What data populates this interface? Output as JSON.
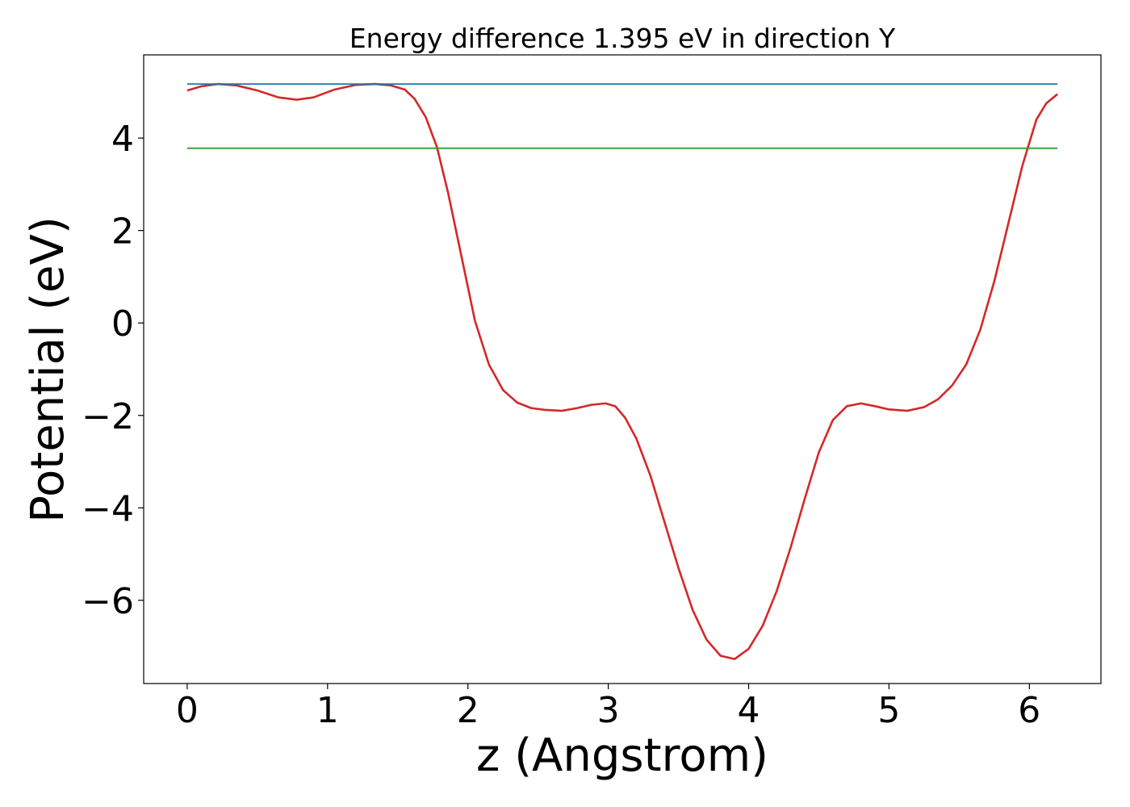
{
  "chart_data": {
    "type": "line",
    "title": "Energy difference 1.395 eV in direction Y",
    "xlabel": "z (Angstrom)",
    "ylabel": "Potential (eV)",
    "xlim": [
      -0.31,
      6.51
    ],
    "ylim": [
      -7.8,
      5.8
    ],
    "x_ticks": [
      0,
      1,
      2,
      3,
      4,
      5,
      6
    ],
    "x_tick_labels": [
      "0",
      "1",
      "2",
      "3",
      "4",
      "5",
      "6"
    ],
    "y_ticks": [
      -6,
      -4,
      -2,
      0,
      2,
      4
    ],
    "y_tick_labels": [
      "−6",
      "−4",
      "−2",
      "0",
      "2",
      "4"
    ],
    "grid": false,
    "legend": "none",
    "series": [
      {
        "color": "#d62728",
        "x": [
          0,
          0.1,
          0.22,
          0.35,
          0.5,
          0.65,
          0.78,
          0.9,
          1.05,
          1.2,
          1.34,
          1.45,
          1.55,
          1.62,
          1.7,
          1.78,
          1.86,
          1.95,
          2.05,
          2.15,
          2.25,
          2.35,
          2.45,
          2.55,
          2.67,
          2.78,
          2.88,
          2.98,
          3.05,
          3.12,
          3.2,
          3.3,
          3.4,
          3.5,
          3.6,
          3.7,
          3.8,
          3.9,
          4.0,
          4.1,
          4.2,
          4.3,
          4.4,
          4.5,
          4.6,
          4.7,
          4.8,
          4.9,
          5.0,
          5.13,
          5.25,
          5.35,
          5.45,
          5.55,
          5.65,
          5.75,
          5.85,
          5.95,
          6.05,
          6.12,
          6.2
        ],
        "y": [
          5.03,
          5.12,
          5.17,
          5.14,
          5.03,
          4.88,
          4.83,
          4.88,
          5.05,
          5.15,
          5.17,
          5.14,
          5.05,
          4.85,
          4.45,
          3.8,
          2.8,
          1.5,
          0.05,
          -0.9,
          -1.45,
          -1.72,
          -1.84,
          -1.88,
          -1.9,
          -1.84,
          -1.77,
          -1.74,
          -1.8,
          -2.05,
          -2.5,
          -3.3,
          -4.3,
          -5.3,
          -6.2,
          -6.85,
          -7.2,
          -7.27,
          -7.05,
          -6.55,
          -5.8,
          -4.85,
          -3.8,
          -2.8,
          -2.1,
          -1.8,
          -1.74,
          -1.8,
          -1.87,
          -1.9,
          -1.82,
          -1.65,
          -1.35,
          -0.9,
          -0.15,
          0.9,
          2.15,
          3.4,
          4.4,
          4.75,
          4.95
        ]
      },
      {
        "color": "#1f77b4",
        "x": [
          0,
          6.2
        ],
        "y": [
          5.17,
          5.17
        ]
      },
      {
        "color": "#2ca02c",
        "x": [
          0,
          6.2
        ],
        "y": [
          3.78,
          3.78
        ]
      }
    ]
  }
}
